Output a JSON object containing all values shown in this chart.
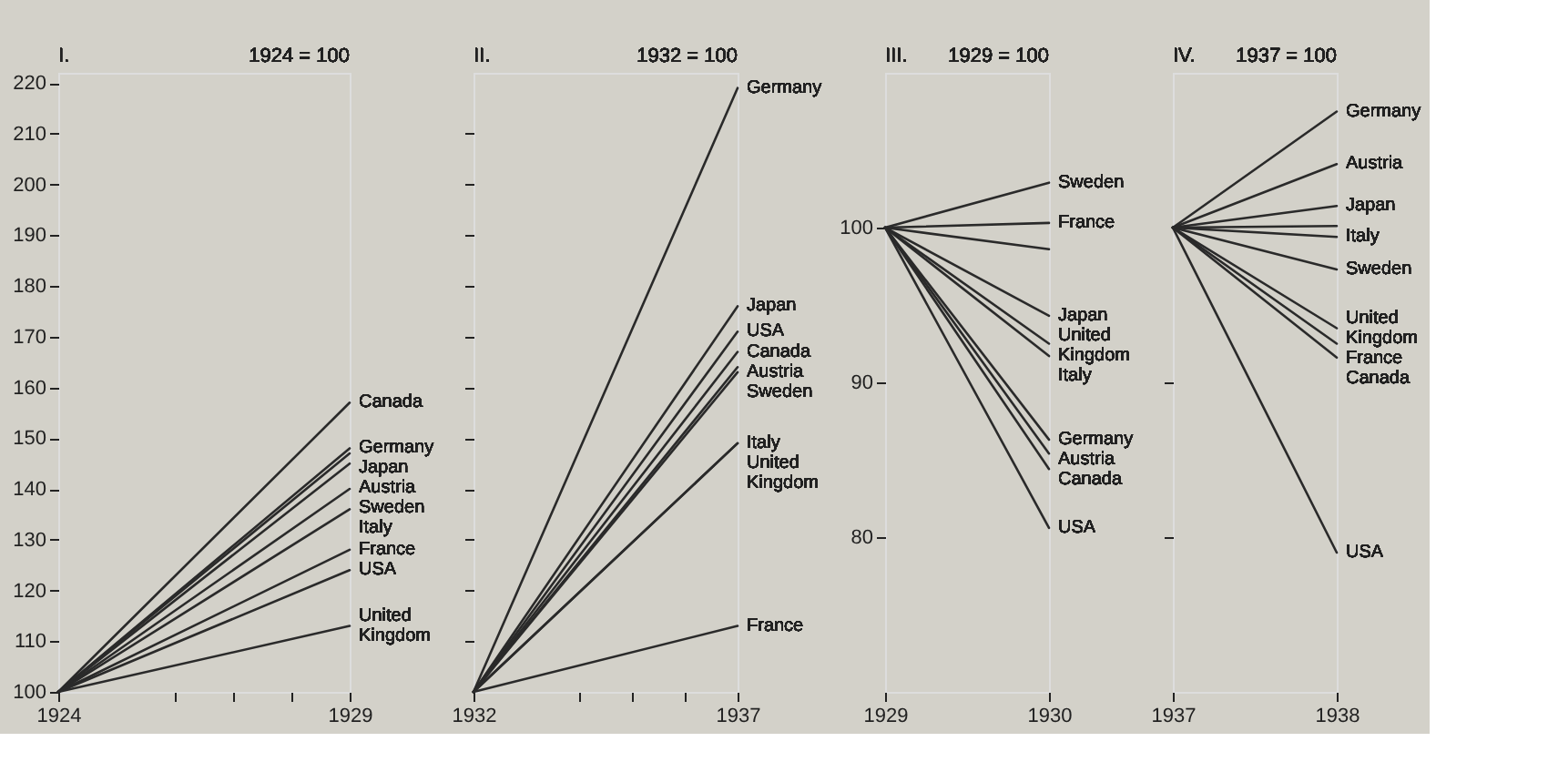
{
  "chart_data": [
    {
      "type": "line",
      "title": "I.",
      "subtitle": "1924 = 100",
      "x": [
        1924,
        1929
      ],
      "xlim": [
        1924,
        1929
      ],
      "xticks": [
        1924,
        {
          "value": 1926,
          "label": null
        },
        {
          "value": 1927,
          "label": null
        },
        {
          "value": 1928,
          "label": null
        },
        1929
      ],
      "ylim": [
        100,
        222
      ],
      "yticks": [
        100,
        110,
        120,
        130,
        140,
        150,
        160,
        170,
        180,
        190,
        200,
        210,
        220
      ],
      "grid": false,
      "legend": "right",
      "marker": "none",
      "line_style": "solid",
      "series": [
        {
          "name": "Canada",
          "color": "#2a2a2a",
          "values": [
            100,
            157
          ]
        },
        {
          "name": "Germany",
          "color": "#2a2a2a",
          "values": [
            100,
            148
          ]
        },
        {
          "name": "Japan",
          "color": "#2a2a2a",
          "values": [
            100,
            147
          ]
        },
        {
          "name": "Austria",
          "color": "#2a2a2a",
          "values": [
            100,
            145
          ]
        },
        {
          "name": "Sweden",
          "color": "#2a2a2a",
          "values": [
            100,
            140
          ]
        },
        {
          "name": "Italy",
          "color": "#2a2a2a",
          "values": [
            100,
            136
          ]
        },
        {
          "name": "France",
          "color": "#2a2a2a",
          "values": [
            100,
            128
          ]
        },
        {
          "name": "USA",
          "color": "#2a2a2a",
          "values": [
            100,
            124
          ]
        },
        {
          "name": "United Kingdom",
          "color": "#2a2a2a",
          "values": [
            100,
            113
          ]
        }
      ]
    },
    {
      "type": "line",
      "title": "II.",
      "subtitle": "1932 = 100",
      "x": [
        1932,
        1937
      ],
      "xlim": [
        1932,
        1937
      ],
      "xticks": [
        1932,
        {
          "value": 1934,
          "label": null
        },
        {
          "value": 1935,
          "label": null
        },
        {
          "value": 1936,
          "label": null
        },
        1937
      ],
      "ylim": [
        100,
        222
      ],
      "yticks": [
        {
          "value": 110,
          "label": null
        },
        {
          "value": 120,
          "label": null
        },
        {
          "value": 130,
          "label": null
        },
        {
          "value": 140,
          "label": null
        },
        {
          "value": 150,
          "label": null
        },
        {
          "value": 160,
          "label": null
        },
        {
          "value": 170,
          "label": null
        },
        {
          "value": 180,
          "label": null
        },
        {
          "value": 190,
          "label": null
        },
        {
          "value": 200,
          "label": null
        },
        {
          "value": 210,
          "label": null
        }
      ],
      "tick_labels": "x",
      "grid": false,
      "legend": "right",
      "marker": "none",
      "line_style": "solid",
      "series": [
        {
          "name": "Germany",
          "color": "#2a2a2a",
          "values": [
            100,
            219
          ]
        },
        {
          "name": "Japan",
          "color": "#2a2a2a",
          "values": [
            100,
            176
          ]
        },
        {
          "name": "USA",
          "color": "#2a2a2a",
          "values": [
            100,
            171
          ]
        },
        {
          "name": "Canada",
          "color": "#2a2a2a",
          "values": [
            100,
            167
          ]
        },
        {
          "name": "Austria",
          "color": "#2a2a2a",
          "values": [
            100,
            164
          ]
        },
        {
          "name": "Sweden",
          "color": "#2a2a2a",
          "values": [
            100,
            163
          ]
        },
        {
          "name": "Italy",
          "color": "#2a2a2a",
          "values": [
            100,
            149
          ]
        },
        {
          "name": "United Kingdom",
          "color": "#2a2a2a",
          "values": [
            100,
            149
          ]
        },
        {
          "name": "France",
          "color": "#2a2a2a",
          "values": [
            100,
            113
          ]
        }
      ]
    },
    {
      "type": "line",
      "title": "III.",
      "subtitle": "1929 = 100",
      "x": [
        1929,
        1930
      ],
      "xlim": [
        1929,
        1930
      ],
      "xticks": [
        1929,
        1930
      ],
      "ylim": [
        70,
        110
      ],
      "yticks": [
        80,
        90,
        100
      ],
      "grid": false,
      "legend": "right",
      "marker": "none",
      "line_style": "solid",
      "series": [
        {
          "name": "Sweden",
          "color": "#2a2a2a",
          "values": [
            100,
            102.9
          ]
        },
        {
          "name": "France",
          "color": "#2a2a2a",
          "values": [
            100,
            100.3
          ]
        },
        {
          "color": "#2a2a2a",
          "values": [
            100,
            98.6
          ]
        },
        {
          "name": "Japan",
          "color": "#2a2a2a",
          "values": [
            100,
            94.3
          ]
        },
        {
          "name": "United Kingdom",
          "color": "#2a2a2a",
          "values": [
            100,
            92.5
          ]
        },
        {
          "name": "Italy",
          "color": "#2a2a2a",
          "values": [
            100,
            91.7
          ]
        },
        {
          "name": "Germany",
          "color": "#2a2a2a",
          "values": [
            100,
            86.3
          ]
        },
        {
          "name": "Austria",
          "color": "#2a2a2a",
          "values": [
            100,
            85.4
          ]
        },
        {
          "name": "Canada",
          "color": "#2a2a2a",
          "values": [
            100,
            84.4
          ]
        },
        {
          "name": "USA",
          "color": "#2a2a2a",
          "values": [
            100,
            80.6
          ]
        }
      ]
    },
    {
      "type": "line",
      "title": "IV.",
      "subtitle": "1937 = 100",
      "x": [
        1937,
        1938
      ],
      "xlim": [
        1937,
        1938
      ],
      "xticks": [
        1937,
        1938
      ],
      "ylim": [
        70,
        110
      ],
      "yticks": [
        {
          "value": 80,
          "label": null
        },
        {
          "value": 90,
          "label": null
        }
      ],
      "tick_labels": "x",
      "grid": false,
      "legend": "right",
      "marker": "none",
      "line_style": "solid",
      "series": [
        {
          "name": "Germany",
          "color": "#2a2a2a",
          "values": [
            100,
            107.5
          ]
        },
        {
          "name": "Austria",
          "color": "#2a2a2a",
          "values": [
            100,
            104.1
          ]
        },
        {
          "name": "Japan",
          "color": "#2a2a2a",
          "values": [
            100,
            101.4
          ]
        },
        {
          "color": "#2a2a2a",
          "values": [
            100,
            100.1
          ]
        },
        {
          "name": "Italy",
          "color": "#2a2a2a",
          "values": [
            100,
            99.4
          ]
        },
        {
          "name": "Sweden",
          "color": "#2a2a2a",
          "values": [
            100,
            97.3
          ]
        },
        {
          "name": "United Kingdom",
          "color": "#2a2a2a",
          "values": [
            100,
            93.5
          ]
        },
        {
          "name": "France",
          "color": "#2a2a2a",
          "values": [
            100,
            92.5
          ]
        },
        {
          "name": "Canada",
          "color": "#2a2a2a",
          "values": [
            100,
            91.6
          ]
        },
        {
          "name": "USA",
          "color": "#2a2a2a",
          "values": [
            100,
            79.0
          ]
        }
      ]
    }
  ]
}
